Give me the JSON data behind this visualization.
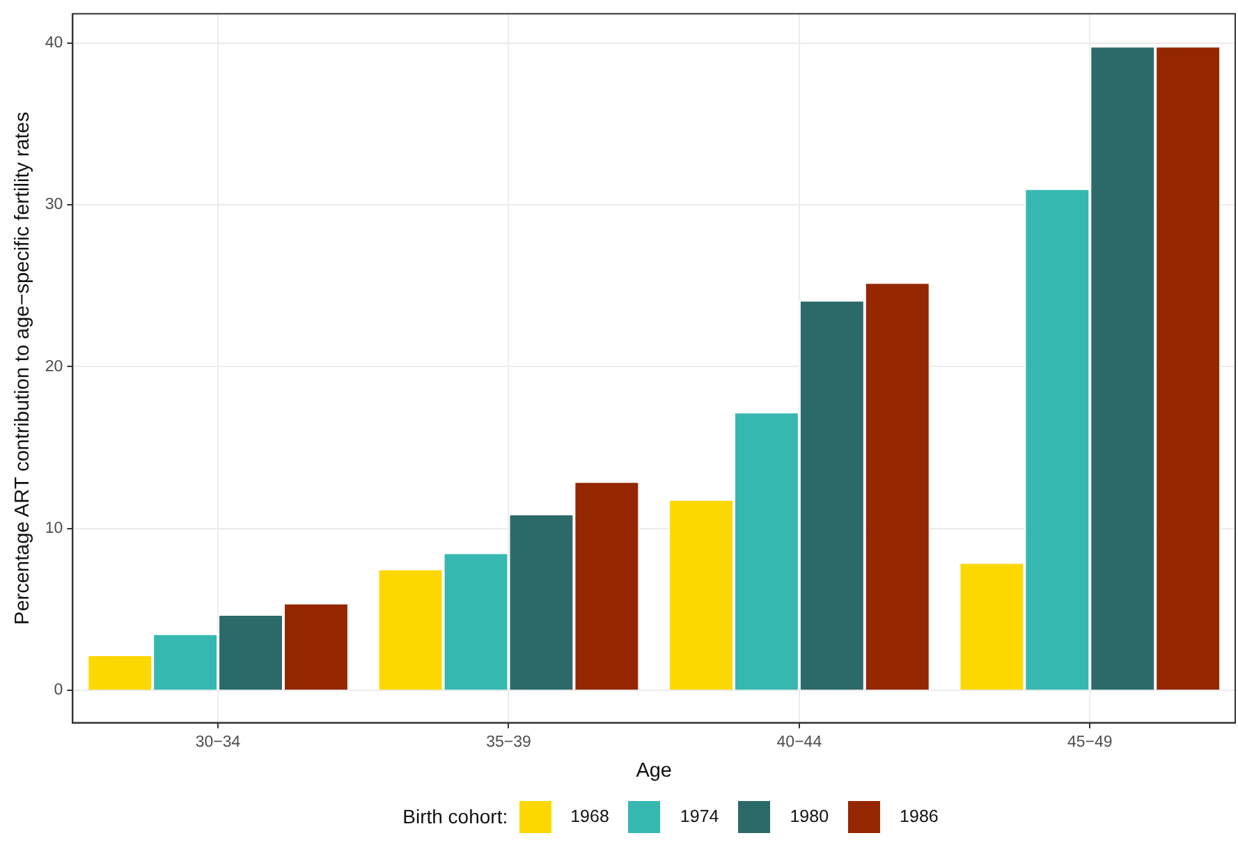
{
  "chart_data": {
    "type": "bar",
    "xlabel": "Age",
    "ylabel": "Percentage ART contribution to age−specific fertility rates",
    "legend_title": "Birth cohort:",
    "categories": [
      "30−34",
      "35−39",
      "40−44",
      "45−49"
    ],
    "series": [
      {
        "name": "1968",
        "color": "#fdd700",
        "values": [
          2.2,
          7.5,
          11.8,
          7.9
        ]
      },
      {
        "name": "1974",
        "color": "#36b8b1",
        "values": [
          3.5,
          8.5,
          17.2,
          31.0
        ]
      },
      {
        "name": "1980",
        "color": "#2c6a6a",
        "values": [
          4.7,
          10.9,
          24.1,
          39.8
        ]
      },
      {
        "name": "1986",
        "color": "#952700",
        "values": [
          5.4,
          12.9,
          25.2,
          39.8
        ]
      }
    ],
    "ylim": [
      -2,
      41.8
    ],
    "yticks": [
      0,
      10,
      20,
      30,
      40
    ],
    "grid": true,
    "legend": "bottom"
  }
}
